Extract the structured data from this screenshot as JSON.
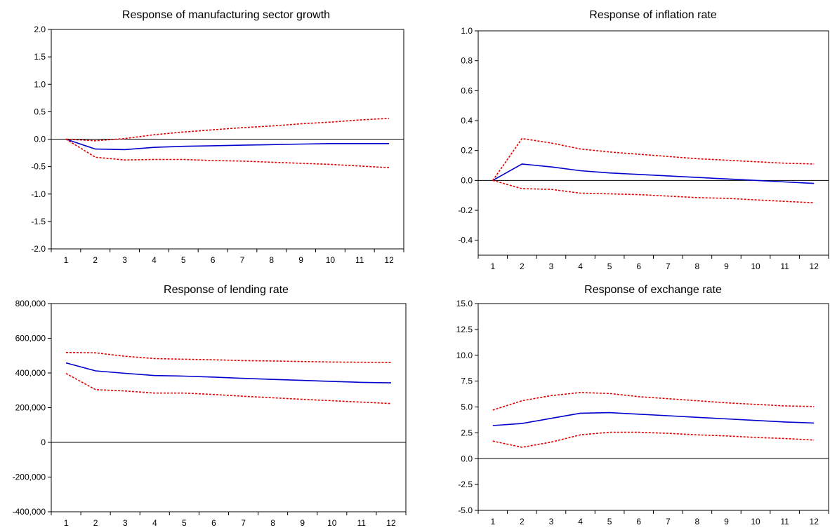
{
  "colors": {
    "response": "#0000cc",
    "bands": "#e00000",
    "frame": "#000000"
  },
  "chart_data": [
    {
      "type": "line",
      "title": "Response of manufacturing sector growth",
      "categories": [
        "1",
        "2",
        "3",
        "4",
        "5",
        "6",
        "7",
        "8",
        "9",
        "10",
        "11",
        "12"
      ],
      "y_ticks": [
        "2.0",
        "1.5",
        "1.0",
        "0.5",
        "0.0",
        "-0.5",
        "-1.0",
        "-1.5",
        "-2.0"
      ],
      "ylim": [
        -2.0,
        2.0
      ],
      "zero_line": true,
      "series": [
        {
          "style": "solid",
          "values": [
            0.0,
            -0.18,
            -0.19,
            -0.15,
            -0.13,
            -0.12,
            -0.11,
            -0.1,
            -0.09,
            -0.08,
            -0.08,
            -0.08
          ]
        },
        {
          "style": "dashed",
          "values": [
            0.0,
            -0.03,
            0.01,
            0.08,
            0.13,
            0.17,
            0.21,
            0.24,
            0.28,
            0.31,
            0.35,
            0.38
          ]
        },
        {
          "style": "dashed",
          "values": [
            0.0,
            -0.33,
            -0.38,
            -0.37,
            -0.37,
            -0.39,
            -0.4,
            -0.42,
            -0.44,
            -0.46,
            -0.49,
            -0.52
          ]
        }
      ]
    },
    {
      "type": "line",
      "title": "Response of inflation rate",
      "categories": [
        "1",
        "2",
        "3",
        "4",
        "5",
        "6",
        "7",
        "8",
        "9",
        "10",
        "11",
        "12"
      ],
      "y_ticks": [
        "1.0",
        "0.8",
        "0.6",
        "0.4",
        "0.2",
        "0.0",
        "-0.2",
        "-0.4"
      ],
      "ylim": [
        -0.5,
        1.0
      ],
      "zero_line": true,
      "series": [
        {
          "style": "solid",
          "values": [
            0.0,
            0.11,
            0.09,
            0.065,
            0.05,
            0.04,
            0.03,
            0.02,
            0.01,
            0.0,
            -0.01,
            -0.02
          ]
        },
        {
          "style": "dashed",
          "values": [
            0.0,
            0.28,
            0.25,
            0.21,
            0.19,
            0.175,
            0.16,
            0.145,
            0.135,
            0.125,
            0.115,
            0.11
          ]
        },
        {
          "style": "dashed",
          "values": [
            0.0,
            -0.055,
            -0.06,
            -0.085,
            -0.09,
            -0.095,
            -0.105,
            -0.115,
            -0.12,
            -0.13,
            -0.14,
            -0.15
          ]
        }
      ]
    },
    {
      "type": "line",
      "title": "Response of lending rate",
      "categories": [
        "1",
        "2",
        "3",
        "4",
        "5",
        "6",
        "7",
        "8",
        "9",
        "10",
        "11",
        "12"
      ],
      "y_ticks": [
        "800,000",
        "600,000",
        "400,000",
        "200,000",
        "0",
        "-200,000",
        "-400,000"
      ],
      "ylim": [
        -400000,
        800000
      ],
      "zero_line": true,
      "series": [
        {
          "style": "solid",
          "values": [
            458000,
            412000,
            398000,
            385000,
            382000,
            376000,
            369000,
            363000,
            357000,
            351000,
            346000,
            343000
          ]
        },
        {
          "style": "dashed",
          "values": [
            518000,
            516000,
            496000,
            483000,
            479000,
            476000,
            471000,
            469000,
            466000,
            463000,
            462000,
            460000
          ]
        },
        {
          "style": "dashed",
          "values": [
            397000,
            304000,
            296000,
            284000,
            284000,
            276000,
            266000,
            257000,
            248000,
            240000,
            232000,
            224000
          ]
        }
      ]
    },
    {
      "type": "line",
      "title": "Response of exchange rate",
      "categories": [
        "1",
        "2",
        "3",
        "4",
        "5",
        "6",
        "7",
        "8",
        "9",
        "10",
        "11",
        "12"
      ],
      "y_ticks": [
        "15.0",
        "12.5",
        "10.0",
        "7.5",
        "5.0",
        "2.5",
        "0.0",
        "-2.5",
        "-5.0"
      ],
      "ylim": [
        -5.0,
        15.0
      ],
      "zero_line": true,
      "series": [
        {
          "style": "solid",
          "values": [
            3.2,
            3.4,
            3.9,
            4.4,
            4.45,
            4.3,
            4.15,
            4.0,
            3.85,
            3.7,
            3.55,
            3.45
          ]
        },
        {
          "style": "dashed",
          "values": [
            4.7,
            5.6,
            6.1,
            6.4,
            6.3,
            6.0,
            5.8,
            5.6,
            5.4,
            5.25,
            5.1,
            5.05
          ]
        },
        {
          "style": "dashed",
          "values": [
            1.7,
            1.1,
            1.6,
            2.3,
            2.55,
            2.55,
            2.45,
            2.3,
            2.2,
            2.05,
            1.95,
            1.8
          ]
        }
      ]
    }
  ]
}
